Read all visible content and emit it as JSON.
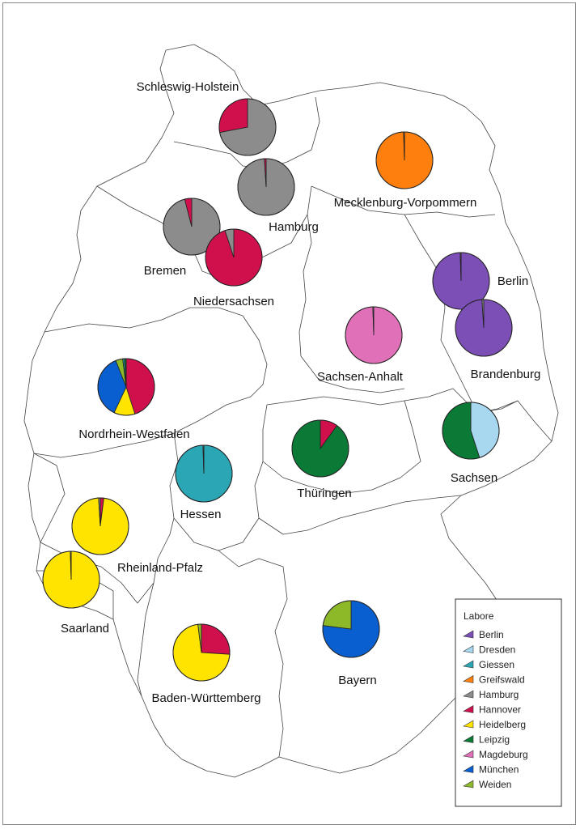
{
  "legend": {
    "title": "Labore",
    "labs": [
      {
        "name": "Berlin",
        "color": "#7b4fb5"
      },
      {
        "name": "Dresden",
        "color": "#a8d8f0"
      },
      {
        "name": "Giessen",
        "color": "#2aa6b4"
      },
      {
        "name": "Greifswald",
        "color": "#ff7f0e"
      },
      {
        "name": "Hamburg",
        "color": "#8c8c8c"
      },
      {
        "name": "Hannover",
        "color": "#d0104c"
      },
      {
        "name": "Heidelberg",
        "color": "#ffe400"
      },
      {
        "name": "Leipzig",
        "color": "#0a7a36"
      },
      {
        "name": "Magdeburg",
        "color": "#e070b8"
      },
      {
        "name": "München",
        "color": "#0a5fd0"
      },
      {
        "name": "Weiden",
        "color": "#8db828"
      }
    ]
  },
  "states": [
    {
      "name": "Schleswig-Holstein",
      "id": "schleswig-holstein",
      "shares": [
        {
          "lab": "Hamburg",
          "value": 72
        },
        {
          "lab": "Hannover",
          "value": 28
        }
      ]
    },
    {
      "name": "Hamburg",
      "id": "hamburg",
      "shares": [
        {
          "lab": "Hamburg",
          "value": 99
        },
        {
          "lab": "Hannover",
          "value": 1
        }
      ]
    },
    {
      "name": "Mecklenburg-Vorpommern",
      "id": "mecklenburg-vorpommern",
      "shares": [
        {
          "lab": "Greifswald",
          "value": 99.5
        },
        {
          "lab": "Hamburg",
          "value": 0.5
        }
      ]
    },
    {
      "name": "Bremen",
      "id": "bremen",
      "shares": [
        {
          "lab": "Hamburg",
          "value": 96
        },
        {
          "lab": "Hannover",
          "value": 4
        }
      ]
    },
    {
      "name": "Niedersachsen",
      "id": "niedersachsen",
      "shares": [
        {
          "lab": "Hannover",
          "value": 95
        },
        {
          "lab": "Hamburg",
          "value": 5
        }
      ]
    },
    {
      "name": "Berlin",
      "id": "berlin",
      "shares": [
        {
          "lab": "Berlin",
          "value": 99.5
        },
        {
          "lab": "Hamburg",
          "value": 0.5
        }
      ]
    },
    {
      "name": "Brandenburg",
      "id": "brandenburg",
      "shares": [
        {
          "lab": "Berlin",
          "value": 99
        },
        {
          "lab": "Hamburg",
          "value": 1
        }
      ]
    },
    {
      "name": "Sachsen-Anhalt",
      "id": "sachsen-anhalt",
      "shares": [
        {
          "lab": "Magdeburg",
          "value": 99.5
        },
        {
          "lab": "Hamburg",
          "value": 0.5
        }
      ]
    },
    {
      "name": "Nordrhein-Westfalen",
      "id": "nordrhein-westfalen",
      "shares": [
        {
          "lab": "Hannover",
          "value": 45
        },
        {
          "lab": "Heidelberg",
          "value": 12
        },
        {
          "lab": "München",
          "value": 37
        },
        {
          "lab": "Weiden",
          "value": 4
        },
        {
          "lab": "Giessen",
          "value": 1
        },
        {
          "lab": "Leipzig",
          "value": 1
        }
      ]
    },
    {
      "name": "Sachsen",
      "id": "sachsen",
      "shares": [
        {
          "lab": "Dresden",
          "value": 45
        },
        {
          "lab": "Leipzig",
          "value": 55
        }
      ]
    },
    {
      "name": "Thüringen",
      "id": "thueringen",
      "shares": [
        {
          "lab": "Hannover",
          "value": 10
        },
        {
          "lab": "Leipzig",
          "value": 90
        }
      ]
    },
    {
      "name": "Hessen",
      "id": "hessen",
      "shares": [
        {
          "lab": "Giessen",
          "value": 99.5
        },
        {
          "lab": "Hamburg",
          "value": 0.5
        }
      ]
    },
    {
      "name": "Rheinland-Pfalz",
      "id": "rheinland-pfalz",
      "shares": [
        {
          "lab": "Hannover",
          "value": 2
        },
        {
          "lab": "Heidelberg",
          "value": 97
        },
        {
          "lab": "Hamburg",
          "value": 1
        }
      ]
    },
    {
      "name": "Saarland",
      "id": "saarland",
      "shares": [
        {
          "lab": "Heidelberg",
          "value": 99.5
        },
        {
          "lab": "Hamburg",
          "value": 0.5
        }
      ]
    },
    {
      "name": "Baden-Württemberg",
      "id": "baden-wuerttemberg",
      "shares": [
        {
          "lab": "Hannover",
          "value": 26
        },
        {
          "lab": "Heidelberg",
          "value": 72
        },
        {
          "lab": "Weiden",
          "value": 2
        }
      ]
    },
    {
      "name": "Bayern",
      "id": "bayern",
      "shares": [
        {
          "lab": "München",
          "value": 77
        },
        {
          "lab": "Weiden",
          "value": 23
        }
      ]
    }
  ]
}
